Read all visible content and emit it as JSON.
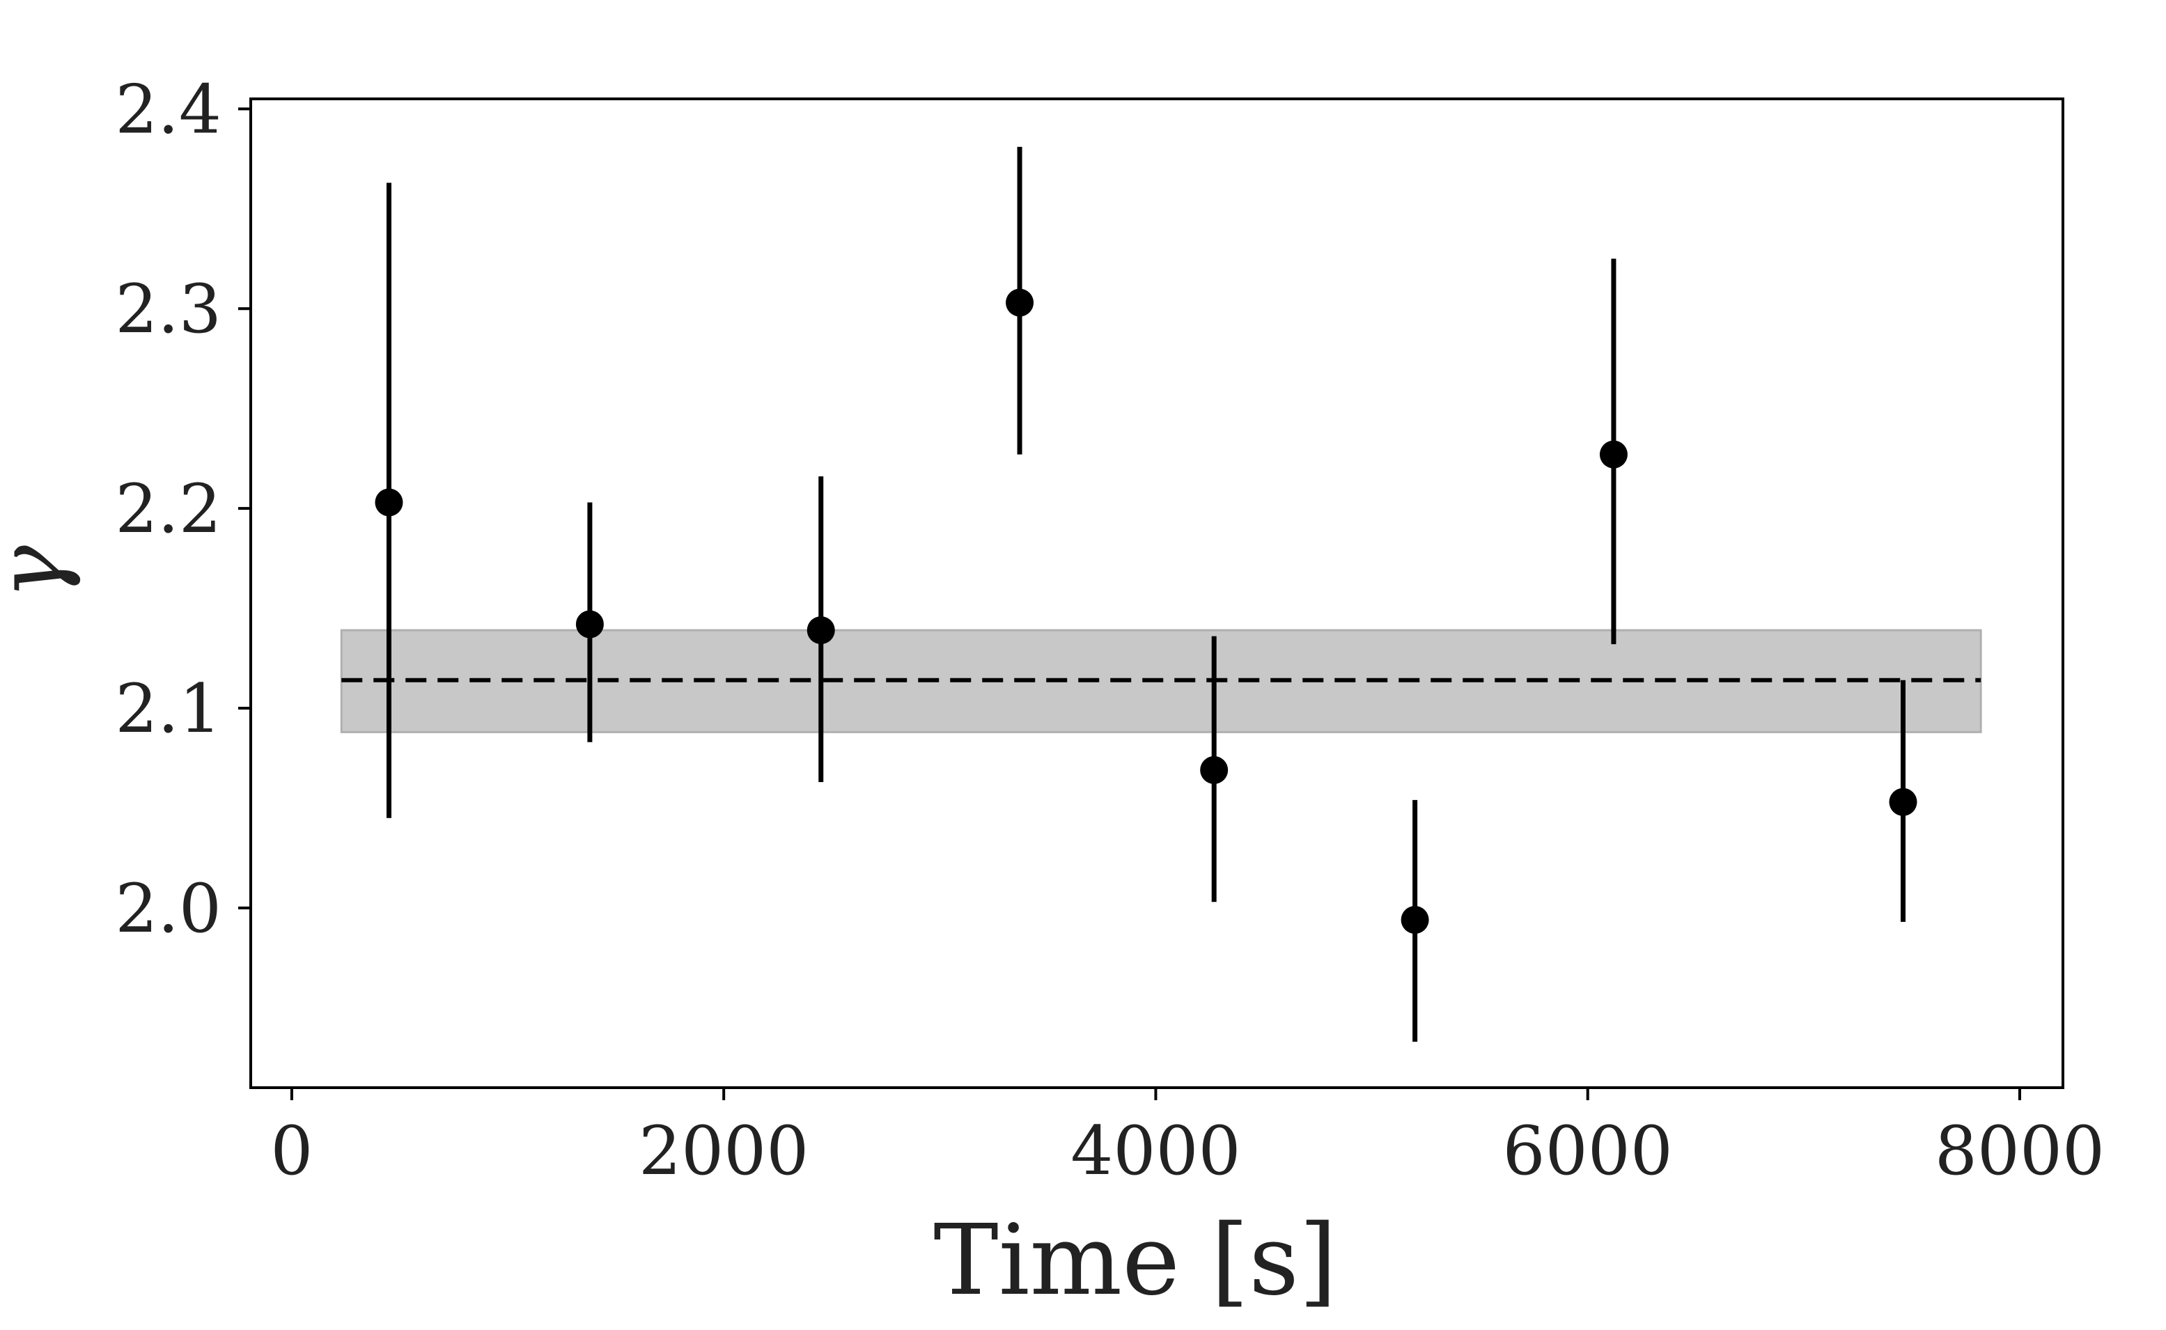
{
  "chart_data": {
    "type": "scatter",
    "title": "",
    "xlabel": "Time [s]",
    "ylabel": "γ",
    "xlim": [
      -190,
      8200
    ],
    "ylim": [
      1.91,
      2.405
    ],
    "x_ticks": [
      0,
      2000,
      4000,
      6000,
      8000
    ],
    "x_tick_labels": [
      "0",
      "2000",
      "4000",
      "6000",
      "8000"
    ],
    "y_ticks": [
      2.0,
      2.1,
      2.2,
      2.3,
      2.4
    ],
    "y_tick_labels": [
      "2.0",
      "2.1",
      "2.2",
      "2.3",
      "2.4"
    ],
    "grid": false,
    "series": [
      {
        "points": [
          {
            "x": 450,
            "y": 2.203,
            "y_low": 2.045,
            "y_high": 2.363
          },
          {
            "x": 1380,
            "y": 2.142,
            "y_low": 2.083,
            "y_high": 2.203
          },
          {
            "x": 2450,
            "y": 2.139,
            "y_low": 2.063,
            "y_high": 2.216
          },
          {
            "x": 3370,
            "y": 2.303,
            "y_low": 2.227,
            "y_high": 2.381
          },
          {
            "x": 4270,
            "y": 2.069,
            "y_low": 2.003,
            "y_high": 2.136
          },
          {
            "x": 5200,
            "y": 1.994,
            "y_low": 1.933,
            "y_high": 2.054
          },
          {
            "x": 6120,
            "y": 2.227,
            "y_low": 2.132,
            "y_high": 2.325
          },
          {
            "x": 7460,
            "y": 2.053,
            "y_low": 1.993,
            "y_high": 2.114
          }
        ],
        "color": "#000000"
      }
    ],
    "reference_line": {
      "y": 2.114,
      "style": "dashed",
      "color": "#000000",
      "x_range": [
        230,
        7820
      ]
    },
    "band": {
      "y_low": 2.088,
      "y_high": 2.139,
      "x_range": [
        230,
        7820
      ],
      "color": "#c8c8c8"
    }
  }
}
